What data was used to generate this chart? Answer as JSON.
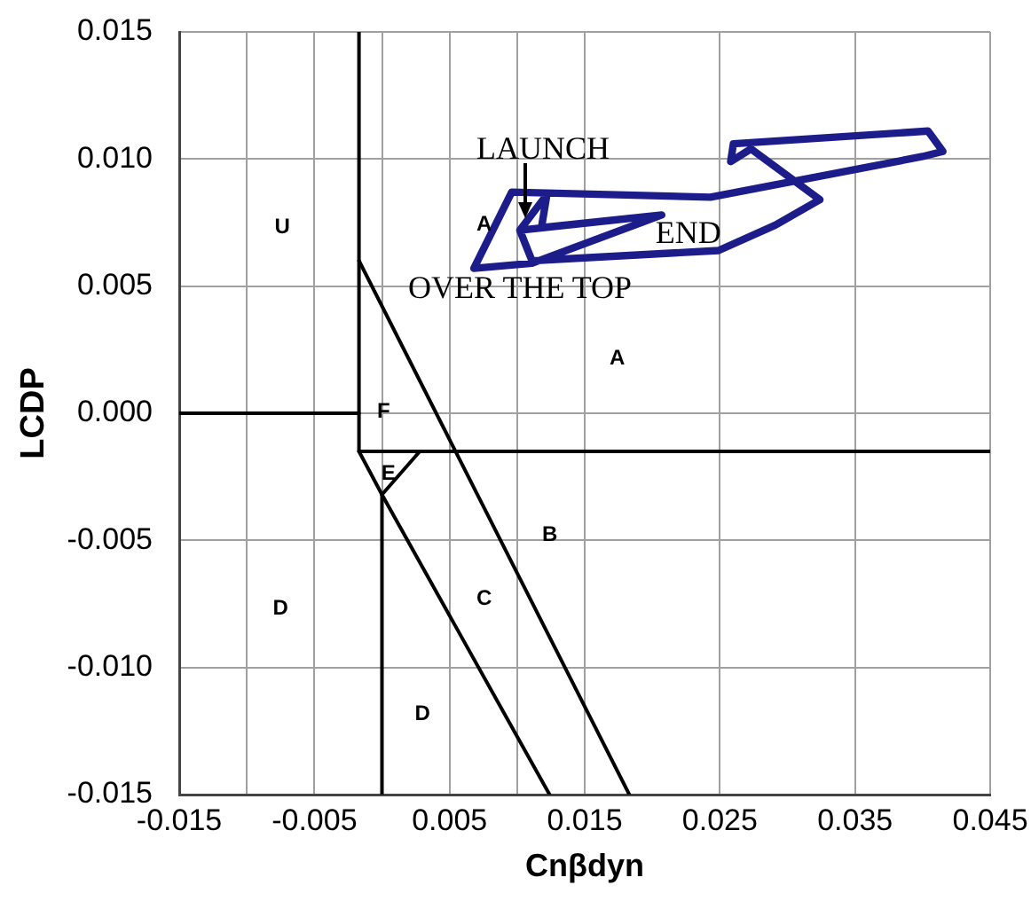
{
  "chart_data": {
    "type": "line",
    "xlabel": "Cnβdyn",
    "ylabel": "LCDP",
    "xlim": [
      -0.015,
      0.045
    ],
    "ylim": [
      -0.015,
      0.015
    ],
    "xticks": [
      -0.015,
      {
        "value": -0.01,
        "label": null
      },
      -0.005,
      {
        "value": 0,
        "label": null
      },
      0.005,
      {
        "value": 0.01,
        "label": null
      },
      0.015,
      0.025,
      0.035,
      0.045
    ],
    "yticks": [
      -0.015,
      {
        "value": -0.01,
        "label": "-0.010"
      },
      -0.005,
      {
        "value": 0,
        "label": "0.000"
      },
      0.005,
      {
        "value": 0.01,
        "label": "0.010"
      },
      0.015
    ],
    "grid": true,
    "legend": false,
    "series": [
      {
        "color": "#1c1c8a",
        "x": [
          0.0102,
          0.0207,
          0.0111,
          0.0068,
          0.0096,
          0.0243,
          0.04,
          0.0415,
          0.0404,
          0.026,
          0.0258,
          0.0273,
          0.0324,
          0.0291,
          0.0249,
          0.0111,
          0.0102,
          0.0122,
          0.0118,
          0.0207
        ],
        "values": [
          0.0072,
          0.0078,
          0.0059,
          0.0057,
          0.0087,
          0.0085,
          0.0101,
          0.0103,
          0.0111,
          0.0106,
          0.0099,
          0.0104,
          0.0084,
          0.0074,
          0.0064,
          0.006,
          0.0072,
          0.0086,
          0.0073,
          0.0078
        ]
      },
      {
        "color": "#000000",
        "x": [
          -0.015,
          -0.0017
        ],
        "values": [
          0,
          0
        ]
      },
      {
        "color": "#000000",
        "x": [
          -0.0017,
          -0.0017
        ],
        "values": [
          0.015,
          -0.0015
        ]
      },
      {
        "color": "#000000",
        "x": [
          -0.0017,
          0.045
        ],
        "values": [
          -0.0015,
          -0.0015
        ]
      },
      {
        "color": "#000000",
        "x": [
          -0.0017,
          0.0183
        ],
        "values": [
          0.006,
          -0.015
        ]
      },
      {
        "color": "#000000",
        "x": [
          -0.0017,
          0,
          0.0124
        ],
        "values": [
          -0.0015,
          -0.0032,
          -0.015
        ]
      },
      {
        "color": "#000000",
        "x": [
          0.0028,
          0
        ],
        "values": [
          -0.0015,
          -0.0032
        ]
      },
      {
        "color": "#000000",
        "x": [
          0,
          0
        ],
        "values": [
          -0.0032,
          -0.015
        ]
      }
    ],
    "annotations": [
      {
        "text": "LAUNCH",
        "x": 0.0106,
        "y": 0.0077
      },
      {
        "text": "END",
        "x": 0.0207,
        "y": 0.0078
      },
      {
        "text": "OVER THE TOP",
        "x": 0.0068,
        "y": 0.0057
      },
      "U",
      "A",
      "F",
      "E",
      "D",
      "C",
      "D",
      "B",
      "A"
    ]
  }
}
